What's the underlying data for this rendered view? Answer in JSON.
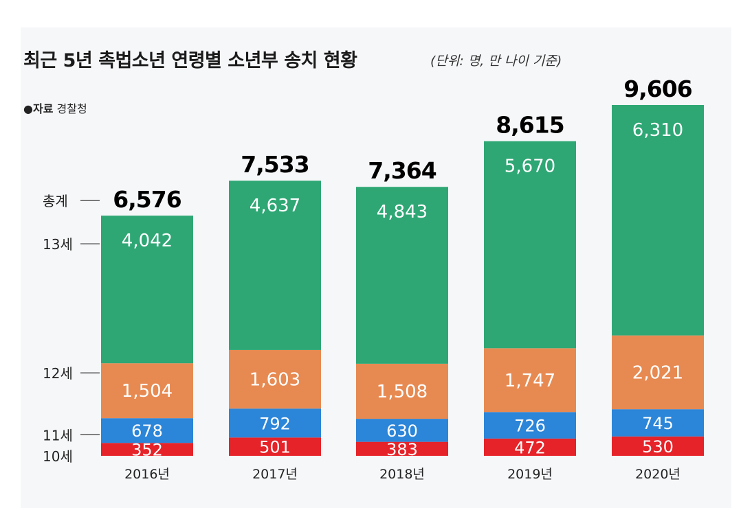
{
  "title": "최근 5년 촉법소년 연령별 소년부 송치 현황",
  "unit_note": "(단위: 명, 만 나이 기준)",
  "source": {
    "label": "자료",
    "value": "경찰청",
    "bullet": "●"
  },
  "chart_data": {
    "type": "bar",
    "stacked": true,
    "title": "최근 5년 촉법소년 연령별 소년부 송치 현황",
    "categories": [
      "2016년",
      "2017년",
      "2018년",
      "2019년",
      "2020년"
    ],
    "series": [
      {
        "name": "10세",
        "color": "#e52329",
        "values": [
          352,
          501,
          383,
          472,
          530
        ]
      },
      {
        "name": "11세",
        "color": "#2b85d8",
        "values": [
          678,
          792,
          630,
          726,
          745
        ]
      },
      {
        "name": "12세",
        "color": "#e78a52",
        "values": [
          1504,
          1603,
          1508,
          1747,
          2021
        ]
      },
      {
        "name": "13세",
        "color": "#2ea774",
        "values": [
          4042,
          4637,
          4843,
          5670,
          6310
        ]
      }
    ],
    "totals": [
      6576,
      7533,
      7364,
      8615,
      9606
    ],
    "total_labels": [
      "6,576",
      "7,533",
      "7,364",
      "8,615",
      "9,606"
    ],
    "total_label_name": "총계",
    "value_labels": [
      [
        "352",
        "501",
        "383",
        "472",
        "530"
      ],
      [
        "678",
        "792",
        "630",
        "726",
        "745"
      ],
      [
        "1,504",
        "1,603",
        "1,508",
        "1,747",
        "2,021"
      ],
      [
        "4,042",
        "4,637",
        "4,843",
        "5,670",
        "6,310"
      ]
    ],
    "ylim": [
      0,
      10000
    ],
    "grid": false,
    "xlabel": "",
    "ylabel": ""
  }
}
